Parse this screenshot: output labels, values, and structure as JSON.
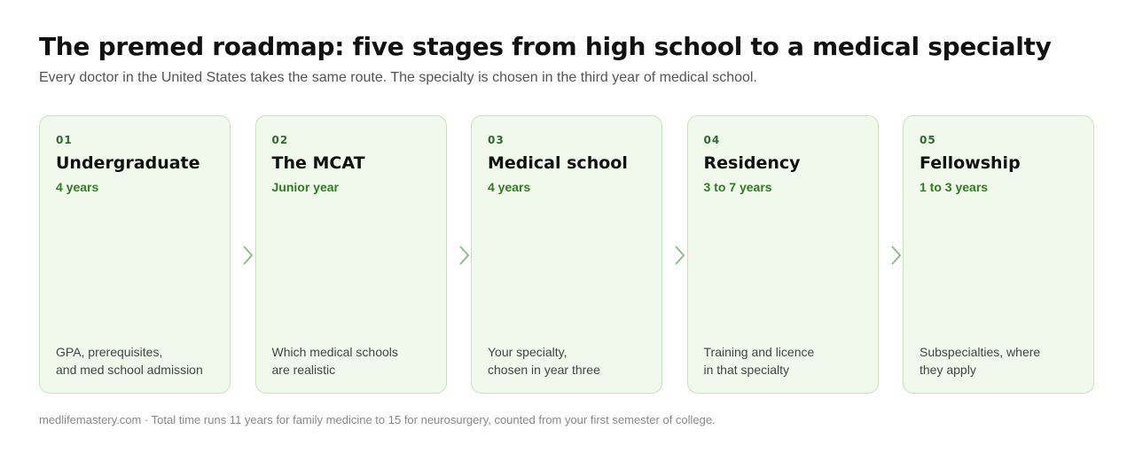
{
  "header": {
    "title": "The premed roadmap: five stages from high school to a medical specialty",
    "subtitle": "Every doctor in the United States takes the same route. The specialty is chosen in the third year of medical school."
  },
  "stages": [
    {
      "number": "01",
      "name": "Undergraduate",
      "duration": "4 years",
      "description": [
        "GPA, prerequisites,",
        "and med school admission"
      ]
    },
    {
      "number": "02",
      "name": "The MCAT",
      "duration": "Junior year",
      "description": [
        "Which medical schools",
        "are realistic"
      ]
    },
    {
      "number": "03",
      "name": "Medical school",
      "duration": "4 years",
      "description": [
        "Your specialty,",
        "chosen in year three"
      ]
    },
    {
      "number": "04",
      "name": "Residency",
      "duration": "3 to 7 years",
      "description": [
        "Training and licence",
        "in that specialty"
      ]
    },
    {
      "number": "05",
      "name": "Fellowship",
      "duration": "1 to 3 years",
      "description": [
        "Subspecialties, where",
        "they apply"
      ]
    }
  ],
  "footer": "medlifemastery.com · Total time runs 11 years for family medicine to 15 for neurosurgery, counted from your first semester of college."
}
